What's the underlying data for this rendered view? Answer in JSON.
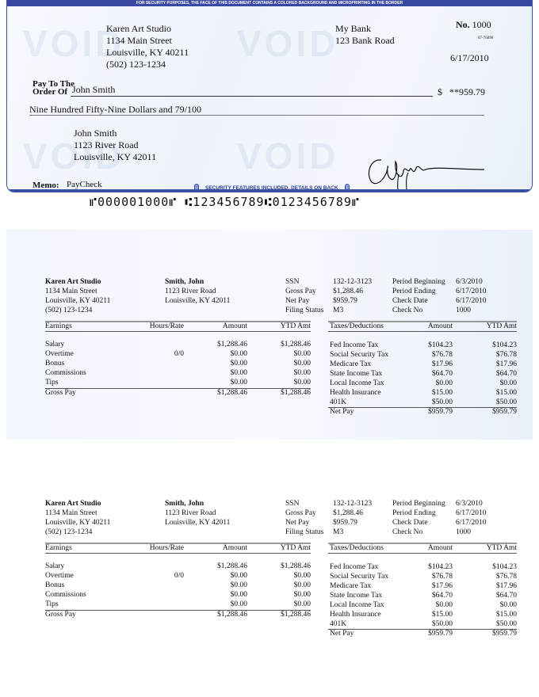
{
  "check": {
    "banner": "FOR SECURITY PURPOSES, THE FACE OF THIS DOCUMENT CONTAINS A COLORED BACKGROUND AND MICROPRINTING IN THE BORDER",
    "watermark": "VOID",
    "company": {
      "name": "Karen Art Studio",
      "street": "1134 Main Street",
      "city": "Louisville, KY 40211",
      "phone": "(502) 123-1234"
    },
    "bank": {
      "name": "My Bank",
      "street": "123 Bank Road"
    },
    "number_label": "No.",
    "number": "1000",
    "routing_fraction": "67-76890",
    "date": "6/17/2010",
    "pay_to_label_1": "Pay To The",
    "pay_to_label_2": "Order Of",
    "payee": "John Smith",
    "currency": "$",
    "amount": "**959.79",
    "amount_words": "Nine Hundred Fifty-Nine Dollars and 79/100",
    "payee_address": {
      "name": "John Smith",
      "street": "1123 River Road",
      "city": "Louisville, KY 42011"
    },
    "memo_label": "Memo:",
    "memo": "PayCheck",
    "security_text": "SECURITY FEATURES INCLUDED. DETAILS ON BACK",
    "micr": "⑈000001000⑈ ⑆123456789⑆0123456789⑈",
    "accent_color": "#3949a3"
  },
  "stub": {
    "company": {
      "name": "Karen Art Studio",
      "street": "1134 Main Street",
      "city": "Louisville, KY 40211",
      "phone": "(502) 123-1234"
    },
    "employee": {
      "name": "Smith, John",
      "street": "1123 River Road",
      "city": "Louisville, KY 42011"
    },
    "info": [
      {
        "label": "SSN",
        "value": "132-12-3123"
      },
      {
        "label": "Gross Pay",
        "value": "$1,288.46"
      },
      {
        "label": "Net Pay",
        "value": "$959.79"
      },
      {
        "label": "Filing Status",
        "value": "M3"
      }
    ],
    "period": [
      {
        "label": "Period Beginning",
        "value": "6/3/2010"
      },
      {
        "label": "Period Ending",
        "value": "6/17/2010"
      },
      {
        "label": "Check Date",
        "value": "6/17/2010"
      },
      {
        "label": "Check No",
        "value": "1000"
      }
    ],
    "earnings_headers": [
      "Earnings",
      "Hours/Rate",
      "Amount",
      "YTD Amt"
    ],
    "earnings": [
      [
        "Salary",
        "",
        "$1,288.46",
        "$1,288.46"
      ],
      [
        "Overtime",
        "0/0",
        "$0.00",
        "$0.00"
      ],
      [
        "Bonus",
        "",
        "$0.00",
        "$0.00"
      ],
      [
        "Commissions",
        "",
        "$0.00",
        "$0.00"
      ],
      [
        "Tips",
        "",
        "$0.00",
        "$0.00"
      ]
    ],
    "gross_row": [
      "Gross Pay",
      "",
      "$1,288.46",
      "$1,288.46"
    ],
    "tax_headers": [
      "Taxes/Deductions",
      "Amount",
      "YTD Amt"
    ],
    "taxes": [
      [
        "Fed Income Tax",
        "$104.23",
        "$104.23"
      ],
      [
        "Social Security Tax",
        "$76.78",
        "$76.78"
      ],
      [
        "Medicare Tax",
        "$17.96",
        "$17.96"
      ],
      [
        "State Income Tax",
        "$64.70",
        "$64.70"
      ],
      [
        "Local Income Tax",
        "$0.00",
        "$0.00"
      ],
      [
        "Health Insurance",
        "$15.00",
        "$15.00"
      ],
      [
        "401K",
        "$50.00",
        "$50.00"
      ]
    ],
    "net_row": [
      "Net Pay",
      "$959.79",
      "$959.79"
    ]
  }
}
